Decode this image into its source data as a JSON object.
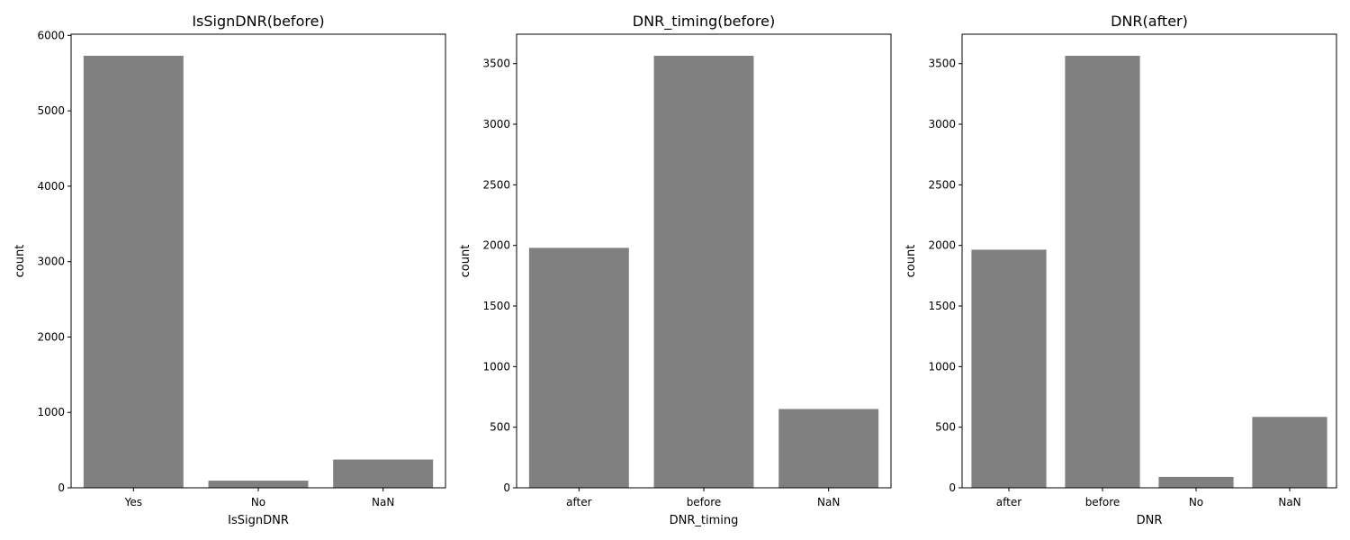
{
  "chart_data": [
    {
      "type": "bar",
      "title": "IsSignDNR(before)",
      "xlabel": "IsSignDNR",
      "ylabel": "count",
      "categories": [
        "Yes",
        "No",
        "NaN"
      ],
      "values": [
        5730,
        95,
        375
      ],
      "ylim": [
        0,
        6016
      ],
      "yticks": [
        0,
        1000,
        2000,
        3000,
        4000,
        5000,
        6000
      ],
      "grid": false,
      "bar_color": "#808080"
    },
    {
      "type": "bar",
      "title": "DNR_timing(before)",
      "xlabel": "DNR_timing",
      "ylabel": "count",
      "categories": [
        "after",
        "before",
        "NaN"
      ],
      "values": [
        1980,
        3565,
        650
      ],
      "ylim": [
        0,
        3743
      ],
      "yticks": [
        0,
        500,
        1000,
        1500,
        2000,
        2500,
        3000,
        3500
      ],
      "grid": false,
      "bar_color": "#808080"
    },
    {
      "type": "bar",
      "title": "DNR(after)",
      "xlabel": "DNR",
      "ylabel": "count",
      "categories": [
        "after",
        "before",
        "No",
        "NaN"
      ],
      "values": [
        1965,
        3565,
        90,
        585
      ],
      "ylim": [
        0,
        3743
      ],
      "yticks": [
        0,
        500,
        1000,
        1500,
        2000,
        2500,
        3000,
        3500
      ],
      "grid": false,
      "bar_color": "#808080"
    }
  ]
}
